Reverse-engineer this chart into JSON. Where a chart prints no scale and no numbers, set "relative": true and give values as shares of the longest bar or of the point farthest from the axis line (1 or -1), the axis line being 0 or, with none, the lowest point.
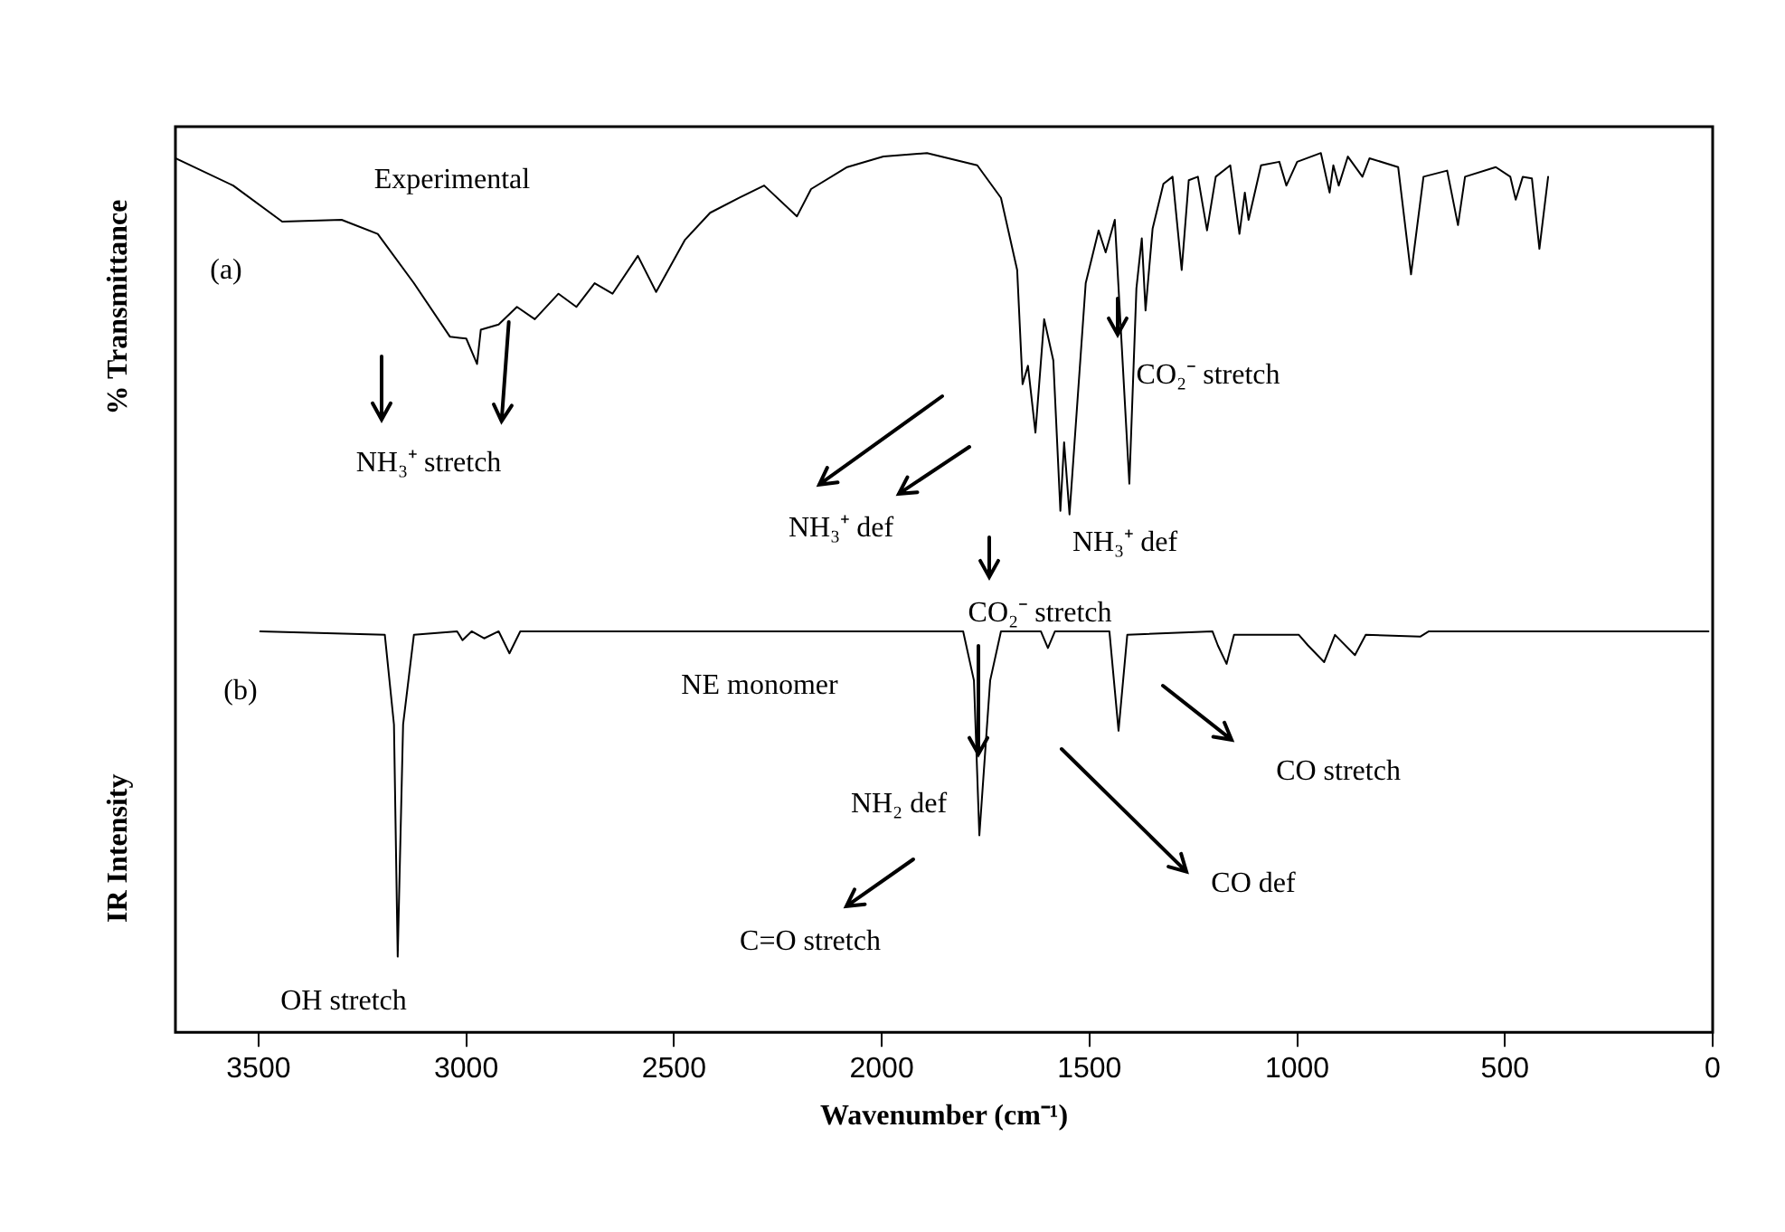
{
  "chart_data": {
    "type": "line",
    "relative": true,
    "xlabel": "Wavenumber (cm⁻¹)",
    "ylabel": "% Transmittance",
    "xlim": [
      3700,
      0
    ],
    "xticks": [
      3500,
      3000,
      2500,
      2000,
      1500,
      1000,
      500,
      0
    ],
    "marker": "none",
    "line_style": "solid",
    "legend": false,
    "grid": false,
    "annotations": [
      "Experimental",
      "(a)",
      "NH₃⁺ stretch",
      "NH₃⁺ def",
      "NH₃⁺ def",
      "CO₂⁻ stretch",
      "CO₂⁻ stretch",
      "(b)",
      "NE monomer",
      "NH₂ def",
      "CO stretch",
      "CO def",
      "C=O stretch",
      "OH stretch",
      "IR Intensity"
    ],
    "series": [
      {
        "color": "#000000",
        "x": [
          3700,
          3561,
          3443,
          3300,
          3213,
          3126,
          3039,
          3000,
          2974,
          2965,
          2922,
          2878,
          2835,
          2778,
          2735,
          2691,
          2648,
          2587,
          2543,
          2474,
          2413,
          2343,
          2283,
          2204,
          2170,
          2083,
          1996,
          1891,
          1770,
          1713,
          1674,
          1661,
          1648,
          1630,
          1609,
          1587,
          1570,
          1561,
          1548,
          1509,
          1478,
          1461,
          1439,
          1404,
          1387,
          1374,
          1365,
          1348,
          1322,
          1300,
          1278,
          1261,
          1239,
          1217,
          1196,
          1161,
          1139,
          1126,
          1117,
          1087,
          1043,
          1026,
          1000,
          943,
          922,
          913,
          900,
          878,
          843,
          826,
          757,
          726,
          696,
          639,
          613,
          596,
          522,
          487,
          474,
          457,
          435,
          417,
          396
        ],
        "values": [
          0.994,
          0.963,
          0.922,
          0.924,
          0.908,
          0.852,
          0.791,
          0.789,
          0.76,
          0.799,
          0.805,
          0.825,
          0.811,
          0.84,
          0.825,
          0.852,
          0.84,
          0.883,
          0.842,
          0.901,
          0.932,
          0.949,
          0.963,
          0.928,
          0.959,
          0.984,
          0.996,
          1.0,
          0.986,
          0.949,
          0.867,
          0.737,
          0.758,
          0.682,
          0.811,
          0.764,
          0.593,
          0.671,
          0.589,
          0.852,
          0.912,
          0.887,
          0.924,
          0.624,
          0.846,
          0.903,
          0.821,
          0.914,
          0.965,
          0.973,
          0.867,
          0.969,
          0.973,
          0.912,
          0.973,
          0.986,
          0.908,
          0.955,
          0.924,
          0.986,
          0.99,
          0.963,
          0.99,
          1.0,
          0.955,
          0.986,
          0.963,
          0.996,
          0.973,
          0.994,
          0.984,
          0.862,
          0.973,
          0.98,
          0.918,
          0.973,
          0.984,
          0.973,
          0.947,
          0.973,
          0.971,
          0.891,
          0.973
        ]
      },
      {
        "color": "#000000",
        "x": [
          3496,
          3196,
          3174,
          3165,
          3152,
          3126,
          3022,
          3009,
          2987,
          2957,
          2922,
          2896,
          2870,
          1804,
          1778,
          1765,
          1739,
          1713,
          1617,
          1600,
          1583,
          1452,
          1430,
          1409,
          1204,
          1191,
          1170,
          1152,
          996,
          974,
          935,
          909,
          861,
          835,
          704,
          683,
          10
        ],
        "values": [
          0.456,
          0.452,
          0.35,
          0.086,
          0.35,
          0.452,
          0.456,
          0.446,
          0.456,
          0.448,
          0.456,
          0.431,
          0.456,
          0.456,
          0.4,
          0.224,
          0.4,
          0.456,
          0.456,
          0.437,
          0.456,
          0.456,
          0.343,
          0.452,
          0.456,
          0.44,
          0.419,
          0.452,
          0.452,
          0.44,
          0.421,
          0.452,
          0.429,
          0.452,
          0.45,
          0.456,
          0.456
        ]
      }
    ]
  }
}
